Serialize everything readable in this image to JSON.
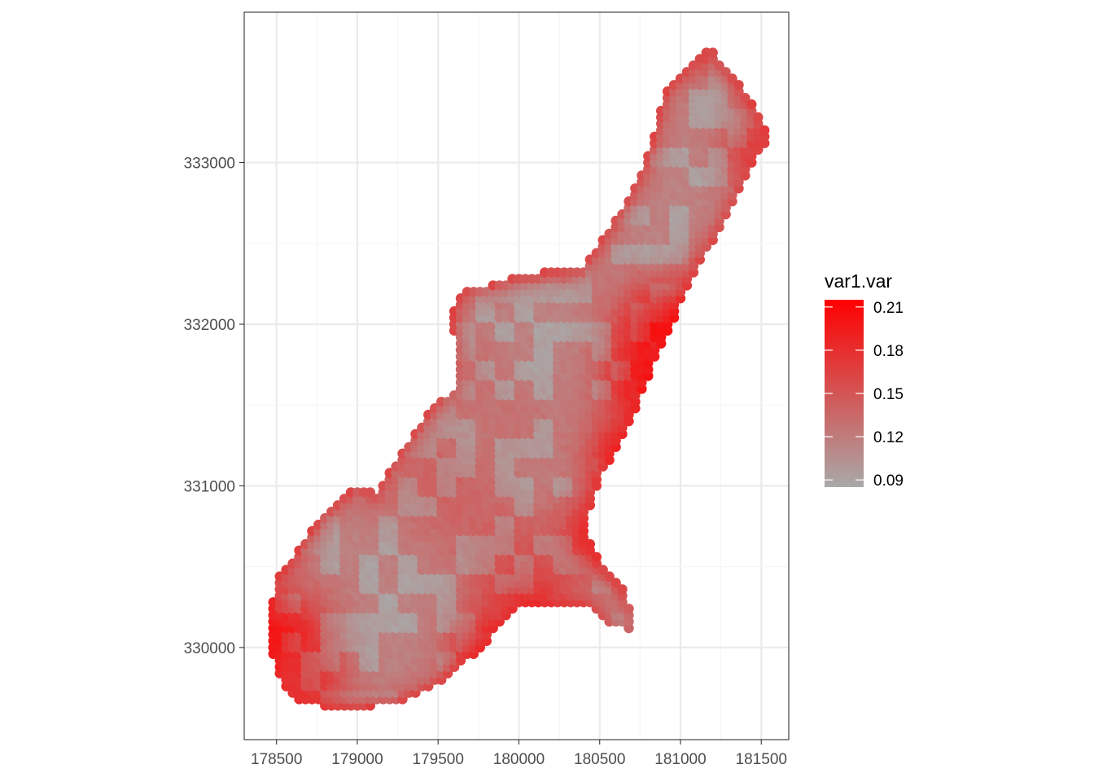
{
  "chart_data": {
    "type": "scatter",
    "title": "",
    "xlabel": "",
    "ylabel": "",
    "xlim": [
      178300,
      181670
    ],
    "ylim": [
      329430,
      333930
    ],
    "x_ticks": [
      178500,
      179000,
      179500,
      180000,
      180500,
      181000,
      181500
    ],
    "y_ticks": [
      330000,
      331000,
      332000,
      333000
    ],
    "x_tick_labels": [
      "178500",
      "179000",
      "179500",
      "180000",
      "180500",
      "181000",
      "181500"
    ],
    "y_tick_labels": [
      "330000",
      "331000",
      "332000",
      "333000"
    ],
    "grid": true,
    "theme": "bw",
    "color_variable": "var1.var",
    "color_scale": {
      "low_color": "#a9a9a9",
      "high_color": "#ff0000",
      "limits": [
        0.085,
        0.215
      ],
      "breaks": [
        0.09,
        0.12,
        0.15,
        0.18,
        0.21
      ],
      "labels": [
        "0.21",
        "0.18",
        "0.15",
        "0.12",
        "0.09"
      ]
    },
    "legend": {
      "title": "var1.var",
      "position": "right"
    },
    "grid_spacing": 40,
    "region_outline": [
      [
        178460,
        330170
      ],
      [
        178500,
        330420
      ],
      [
        178560,
        330500
      ],
      [
        178650,
        330620
      ],
      [
        178780,
        330810
      ],
      [
        178900,
        330920
      ],
      [
        179010,
        331000
      ],
      [
        179120,
        330950
      ],
      [
        179200,
        331080
      ],
      [
        179300,
        331240
      ],
      [
        179410,
        331400
      ],
      [
        179480,
        331500
      ],
      [
        179600,
        331580
      ],
      [
        179610,
        331700
      ],
      [
        179620,
        331830
      ],
      [
        179600,
        331940
      ],
      [
        179600,
        332100
      ],
      [
        179680,
        332230
      ],
      [
        179820,
        332240
      ],
      [
        180000,
        332300
      ],
      [
        180250,
        332340
      ],
      [
        180390,
        332340
      ],
      [
        180520,
        332540
      ],
      [
        180650,
        332730
      ],
      [
        180760,
        332950
      ],
      [
        180830,
        333140
      ],
      [
        180900,
        333420
      ],
      [
        181040,
        333580
      ],
      [
        181180,
        333710
      ],
      [
        181370,
        333480
      ],
      [
        181500,
        333260
      ],
      [
        181540,
        333150
      ],
      [
        181460,
        333010
      ],
      [
        181370,
        332840
      ],
      [
        181260,
        332600
      ],
      [
        181120,
        332380
      ],
      [
        181020,
        332180
      ],
      [
        180940,
        331990
      ],
      [
        180840,
        331760
      ],
      [
        180740,
        331520
      ],
      [
        180640,
        331280
      ],
      [
        180500,
        331060
      ],
      [
        180440,
        330870
      ],
      [
        180430,
        330690
      ],
      [
        180500,
        330520
      ],
      [
        180640,
        330370
      ],
      [
        180700,
        330210
      ],
      [
        180700,
        330100
      ],
      [
        180560,
        330150
      ],
      [
        180430,
        330270
      ],
      [
        180270,
        330260
      ],
      [
        180120,
        330280
      ],
      [
        180000,
        330250
      ],
      [
        179880,
        330150
      ],
      [
        179780,
        330000
      ],
      [
        179660,
        329910
      ],
      [
        179550,
        329800
      ],
      [
        179410,
        329730
      ],
      [
        179250,
        329660
      ],
      [
        179000,
        329630
      ],
      [
        178800,
        329630
      ],
      [
        178640,
        329680
      ],
      [
        178540,
        329770
      ],
      [
        178490,
        329900
      ],
      [
        178440,
        330060
      ]
    ],
    "hotspots": [
      {
        "x": 180880,
        "y": 331980,
        "value": 0.215,
        "radius": 200
      },
      {
        "x": 180780,
        "y": 331650,
        "value": 0.205,
        "radius": 190
      },
      {
        "x": 180650,
        "y": 331200,
        "value": 0.195,
        "radius": 170
      },
      {
        "x": 180460,
        "y": 330700,
        "value": 0.19,
        "radius": 160
      },
      {
        "x": 180050,
        "y": 330330,
        "value": 0.195,
        "radius": 200
      },
      {
        "x": 179800,
        "y": 330000,
        "value": 0.19,
        "radius": 170
      },
      {
        "x": 178540,
        "y": 330050,
        "value": 0.21,
        "radius": 230
      },
      {
        "x": 178700,
        "y": 329760,
        "value": 0.18,
        "radius": 160
      },
      {
        "x": 181450,
        "y": 333100,
        "value": 0.17,
        "radius": 150
      },
      {
        "x": 181180,
        "y": 333700,
        "value": 0.16,
        "radius": 110
      },
      {
        "x": 179550,
        "y": 331000,
        "value": 0.145,
        "radius": 260
      },
      {
        "x": 179950,
        "y": 330600,
        "value": 0.15,
        "radius": 220
      },
      {
        "x": 179700,
        "y": 331700,
        "value": 0.135,
        "radius": 160
      },
      {
        "x": 180000,
        "y": 331400,
        "value": 0.13,
        "radius": 200
      },
      {
        "x": 180640,
        "y": 330160,
        "value": 0.13,
        "radius": 100
      }
    ],
    "background_value": 0.115,
    "edge_value": 0.165
  }
}
